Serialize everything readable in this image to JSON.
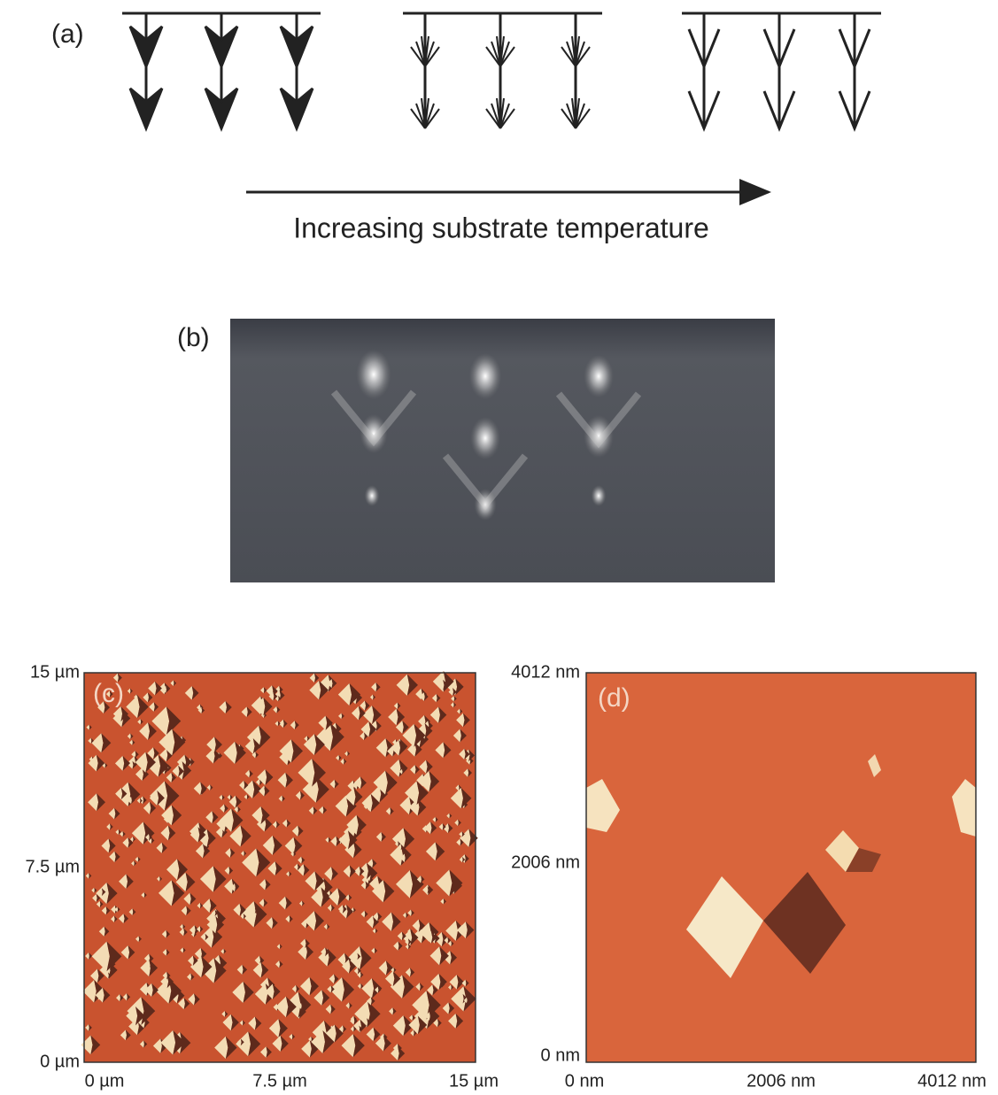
{
  "panel_a": {
    "label": "(a)",
    "caption": "Increasing substrate temperature"
  },
  "panel_b": {
    "label": "(b)"
  },
  "panel_c": {
    "label": "(c)",
    "y_ticks": [
      "15 µm",
      "7.5 µm",
      "0 µm"
    ],
    "x_ticks": [
      "0 µm",
      "7.5 µm",
      "15 µm"
    ]
  },
  "panel_d": {
    "label": "(d)",
    "y_ticks": [
      "4012 nm",
      "2006 nm",
      "0 nm"
    ],
    "x_ticks": [
      "0 nm",
      "2006 nm",
      "4012 nm"
    ]
  }
}
